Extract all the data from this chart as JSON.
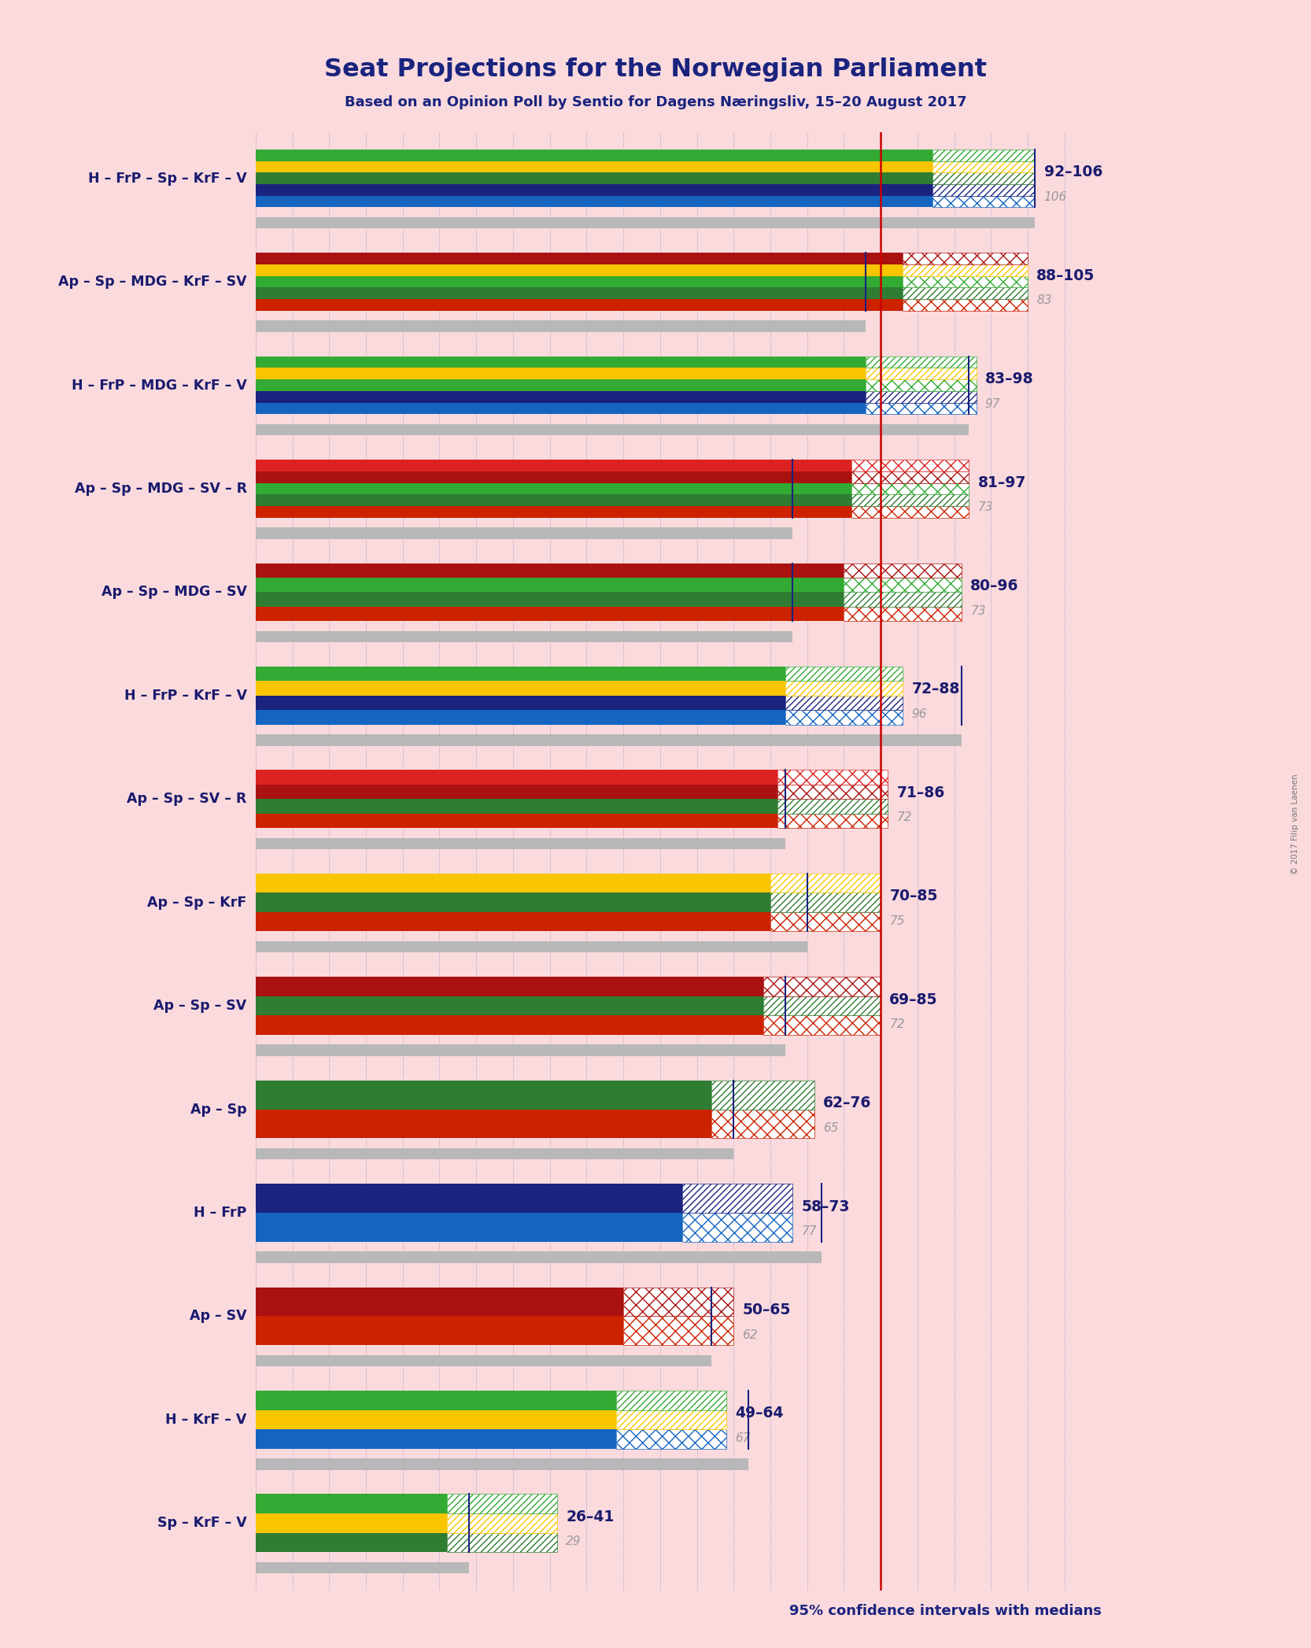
{
  "title": "Seat Projections for the Norwegian Parliament",
  "subtitle": "Based on an Opinion Poll by Sentio for Dagens Næringsliv, 15–20 August 2017",
  "footnote": "95% confidence intervals with medians",
  "background_color": "#fadadd",
  "copyright": "© 2017 Filip van Laenen",
  "coalitions": [
    {
      "name": "H – FrP – Sp – KrF – V",
      "low": 92,
      "high": 106,
      "median": 106,
      "parties": [
        "H",
        "FrP",
        "Sp",
        "KrF",
        "V"
      ]
    },
    {
      "name": "Ap – Sp – MDG – KrF – SV",
      "low": 88,
      "high": 105,
      "median": 83,
      "parties": [
        "Ap",
        "Sp",
        "MDG",
        "KrF",
        "SV"
      ]
    },
    {
      "name": "H – FrP – MDG – KrF – V",
      "low": 83,
      "high": 98,
      "median": 97,
      "parties": [
        "H",
        "FrP",
        "MDG",
        "KrF",
        "V"
      ]
    },
    {
      "name": "Ap – Sp – MDG – SV – R",
      "low": 81,
      "high": 97,
      "median": 73,
      "parties": [
        "Ap",
        "Sp",
        "MDG",
        "SV",
        "R"
      ]
    },
    {
      "name": "Ap – Sp – MDG – SV",
      "low": 80,
      "high": 96,
      "median": 73,
      "parties": [
        "Ap",
        "Sp",
        "MDG",
        "SV"
      ]
    },
    {
      "name": "H – FrP – KrF – V",
      "low": 72,
      "high": 88,
      "median": 96,
      "parties": [
        "H",
        "FrP",
        "KrF",
        "V"
      ]
    },
    {
      "name": "Ap – Sp – SV – R",
      "low": 71,
      "high": 86,
      "median": 72,
      "parties": [
        "Ap",
        "Sp",
        "SV",
        "R"
      ]
    },
    {
      "name": "Ap – Sp – KrF",
      "low": 70,
      "high": 85,
      "median": 75,
      "parties": [
        "Ap",
        "Sp",
        "KrF"
      ]
    },
    {
      "name": "Ap – Sp – SV",
      "low": 69,
      "high": 85,
      "median": 72,
      "parties": [
        "Ap",
        "Sp",
        "SV"
      ]
    },
    {
      "name": "Ap – Sp",
      "low": 62,
      "high": 76,
      "median": 65,
      "parties": [
        "Ap",
        "Sp"
      ]
    },
    {
      "name": "H – FrP",
      "low": 58,
      "high": 73,
      "median": 77,
      "parties": [
        "H",
        "FrP"
      ]
    },
    {
      "name": "Ap – SV",
      "low": 50,
      "high": 65,
      "median": 62,
      "parties": [
        "Ap",
        "SV"
      ]
    },
    {
      "name": "H – KrF – V",
      "low": 49,
      "high": 64,
      "median": 67,
      "parties": [
        "H",
        "KrF",
        "V"
      ]
    },
    {
      "name": "Sp – KrF – V",
      "low": 26,
      "high": 41,
      "median": 29,
      "parties": [
        "Sp",
        "KrF",
        "V"
      ]
    }
  ],
  "party_colors": {
    "H": "#1565c0",
    "FrP": "#1a237e",
    "Ap": "#cc2200",
    "Sp": "#2e7d32",
    "MDG": "#33aa33",
    "KrF": "#f9c500",
    "SV": "#aa1111",
    "V": "#33aa33",
    "R": "#dd2222"
  },
  "majority_line": 85,
  "xmax": 115,
  "label_color_range": "#1a1a6e",
  "label_color_median": "#999999",
  "vline_color": "#cc0000",
  "grid_color": "#3355aa"
}
